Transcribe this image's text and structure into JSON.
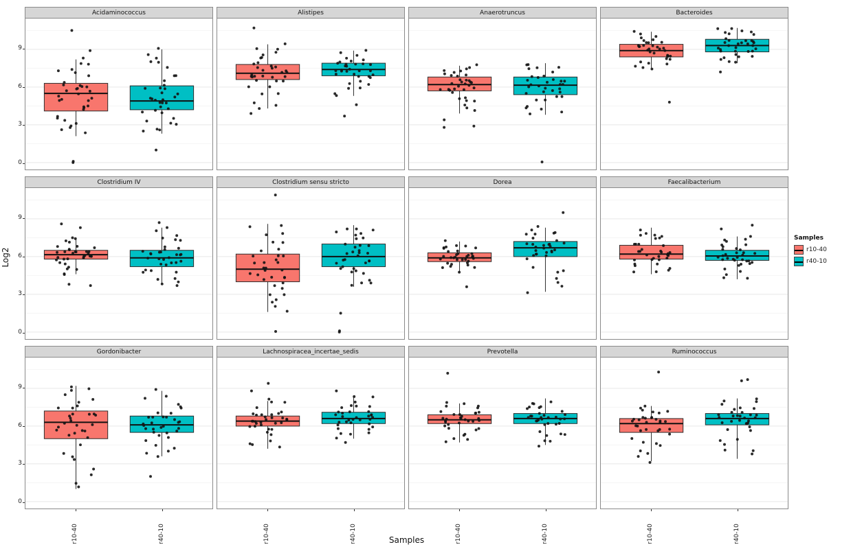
{
  "figure": {
    "ylabel": "Log2",
    "xlabel": "Samples",
    "y_ticks": [
      0,
      3,
      6,
      9
    ],
    "ylim": [
      -0.55,
      11.45
    ],
    "x_categories": [
      "r10-40",
      "r40-10"
    ],
    "legend": {
      "title": "Samples",
      "items": [
        {
          "label": "r10-40",
          "color": "#F8766D"
        },
        {
          "label": "r40-10",
          "color": "#00BFC4"
        }
      ]
    },
    "colors": {
      "r10-40": "#F8766D",
      "r40-10": "#00BFC4",
      "strip_bg": "#d6d6d6",
      "panel_border": "#8a8a8a",
      "grid_major": "#e8e8e8",
      "grid_minor": "#f5f5f5"
    }
  },
  "chart_data": {
    "type": "boxplot",
    "subtype": "faceted boxplot with jittered points",
    "ylabel": "Log2",
    "xlabel": "Samples",
    "ylim": [
      -0.55,
      11.45
    ],
    "y_ticks": [
      0,
      3,
      6,
      9
    ],
    "categories": [
      "r10-40",
      "r40-10"
    ],
    "legend_position": "right",
    "points_per_group": 34,
    "facets": [
      {
        "title": "Acidaminococcus",
        "groups": [
          {
            "name": "r10-40",
            "min": 2.1,
            "q1": 4.1,
            "median": 5.5,
            "q3": 6.3,
            "max": 8.2,
            "outliers": [
              0.0,
              0.1,
              10.5,
              8.9
            ]
          },
          {
            "name": "r40-10",
            "min": 2.3,
            "q1": 4.2,
            "median": 4.9,
            "q3": 6.1,
            "max": 9.0,
            "outliers": [
              1.0,
              8.3
            ]
          }
        ]
      },
      {
        "title": "Alistipes",
        "groups": [
          {
            "name": "r10-40",
            "min": 4.3,
            "q1": 6.6,
            "median": 7.1,
            "q3": 7.8,
            "max": 9.4,
            "outliers": [
              10.7,
              3.9
            ]
          },
          {
            "name": "r40-10",
            "min": 5.3,
            "q1": 6.9,
            "median": 7.4,
            "q3": 7.9,
            "max": 8.9,
            "outliers": [
              3.7,
              4.6
            ]
          }
        ]
      },
      {
        "title": "Anaerotruncus",
        "groups": [
          {
            "name": "r10-40",
            "min": 3.9,
            "q1": 5.7,
            "median": 6.2,
            "q3": 6.8,
            "max": 7.7,
            "outliers": [
              2.8,
              2.9,
              3.4
            ]
          },
          {
            "name": "r40-10",
            "min": 3.8,
            "q1": 5.4,
            "median": 6.15,
            "q3": 6.8,
            "max": 7.9,
            "outliers": [
              0.05
            ]
          }
        ]
      },
      {
        "title": "Bacteroides",
        "groups": [
          {
            "name": "r10-40",
            "min": 7.5,
            "q1": 8.4,
            "median": 8.9,
            "q3": 9.4,
            "max": 10.4,
            "outliers": [
              4.8
            ]
          },
          {
            "name": "r40-10",
            "min": 7.9,
            "q1": 8.8,
            "median": 9.3,
            "q3": 9.8,
            "max": 10.7,
            "outliers": [
              7.2
            ]
          }
        ]
      },
      {
        "title": "Clostridium IV",
        "groups": [
          {
            "name": "r10-40",
            "min": 4.6,
            "q1": 5.8,
            "median": 6.15,
            "q3": 6.5,
            "max": 7.4,
            "outliers": [
              3.7,
              3.8,
              8.3,
              8.6
            ]
          },
          {
            "name": "r40-10",
            "min": 3.8,
            "q1": 5.2,
            "median": 5.9,
            "q3": 6.5,
            "max": 8.3,
            "outliers": [
              8.7,
              3.7
            ]
          }
        ]
      },
      {
        "title": "Clostridium sensu stricto",
        "groups": [
          {
            "name": "r10-40",
            "min": 1.6,
            "q1": 4.0,
            "median": 5.0,
            "q3": 6.2,
            "max": 8.6,
            "outliers": [
              0.05,
              10.9
            ]
          },
          {
            "name": "r40-10",
            "min": 3.6,
            "q1": 5.2,
            "median": 6.0,
            "q3": 7.0,
            "max": 8.5,
            "outliers": [
              0.0,
              0.1,
              1.5
            ]
          }
        ]
      },
      {
        "title": "Dorea",
        "groups": [
          {
            "name": "r10-40",
            "min": 4.8,
            "q1": 5.6,
            "median": 5.9,
            "q3": 6.3,
            "max": 7.2,
            "outliers": [
              3.6
            ]
          },
          {
            "name": "r40-10",
            "min": 3.2,
            "q1": 6.0,
            "median": 6.7,
            "q3": 7.2,
            "max": 8.3,
            "outliers": [
              9.5
            ]
          }
        ]
      },
      {
        "title": "Faecalibacterium",
        "groups": [
          {
            "name": "r10-40",
            "min": 4.6,
            "q1": 5.8,
            "median": 6.2,
            "q3": 6.9,
            "max": 8.3,
            "outliers": []
          },
          {
            "name": "r40-10",
            "min": 4.2,
            "q1": 5.7,
            "median": 6.05,
            "q3": 6.5,
            "max": 7.6,
            "outliers": [
              8.5,
              8.2
            ]
          }
        ]
      },
      {
        "title": "Gordonibacter",
        "groups": [
          {
            "name": "r10-40",
            "min": 1.0,
            "q1": 5.0,
            "median": 6.3,
            "q3": 7.2,
            "max": 9.2,
            "outliers": []
          },
          {
            "name": "r40-10",
            "min": 3.6,
            "q1": 5.5,
            "median": 6.1,
            "q3": 6.8,
            "max": 8.8,
            "outliers": [
              2.0
            ]
          }
        ]
      },
      {
        "title": "Lachnospiracea_incertae_sedis",
        "groups": [
          {
            "name": "r10-40",
            "min": 4.2,
            "q1": 6.0,
            "median": 6.4,
            "q3": 6.8,
            "max": 8.0,
            "outliers": [
              9.4,
              8.8
            ]
          },
          {
            "name": "r40-10",
            "min": 5.0,
            "q1": 6.2,
            "median": 6.6,
            "q3": 7.1,
            "max": 8.3,
            "outliers": [
              8.8,
              4.7
            ]
          }
        ]
      },
      {
        "title": "Prevotella",
        "groups": [
          {
            "name": "r10-40",
            "min": 4.7,
            "q1": 6.2,
            "median": 6.5,
            "q3": 6.9,
            "max": 7.8,
            "outliers": [
              10.2
            ]
          },
          {
            "name": "r40-10",
            "min": 4.5,
            "q1": 6.2,
            "median": 6.6,
            "q3": 7.0,
            "max": 8.2,
            "outliers": []
          }
        ]
      },
      {
        "title": "Ruminococcus",
        "groups": [
          {
            "name": "r10-40",
            "min": 3.2,
            "q1": 5.5,
            "median": 6.2,
            "q3": 6.6,
            "max": 7.6,
            "outliers": [
              10.3
            ]
          },
          {
            "name": "r40-10",
            "min": 3.4,
            "q1": 6.1,
            "median": 6.6,
            "q3": 7.0,
            "max": 8.2,
            "outliers": [
              9.7,
              9.6
            ]
          }
        ]
      }
    ]
  }
}
